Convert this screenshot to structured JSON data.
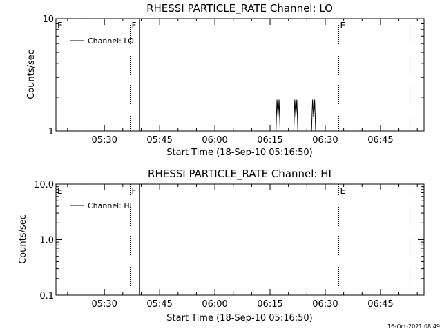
{
  "chart_data": [
    {
      "type": "line",
      "title": "RHESSI PARTICLE_RATE Channel: LO",
      "xlabel": "Start Time (18-Sep-10 05:16:50)",
      "ylabel": "Counts/sec",
      "y_scale": "log",
      "ylim": [
        1,
        10
      ],
      "y_ticks": [
        {
          "value": 1,
          "label": "1"
        },
        {
          "value": 10,
          "label": "10"
        }
      ],
      "xlim": [
        "05:16:50",
        "06:56:50"
      ],
      "x_ticks": [
        "05:30",
        "05:45",
        "06:00",
        "06:15",
        "06:30",
        "06:45"
      ],
      "legend": {
        "placement": "top-left",
        "label": "Channel: LO"
      },
      "flags": [
        {
          "label": "E",
          "time": "05:16:50",
          "style": "dotted"
        },
        {
          "label": "F",
          "time": "05:37:00",
          "style": "dotted"
        },
        {
          "label": "",
          "time": "05:39:30",
          "style": "solid"
        },
        {
          "label": "E",
          "time": "06:33:40",
          "style": "dotted"
        },
        {
          "label": "",
          "time": "06:53:00",
          "style": "dotted"
        }
      ],
      "series": [
        {
          "name": "Channel: LO",
          "points": [
            {
              "x": "06:17:10",
              "y": 1.9
            },
            {
              "x": "06:22:00",
              "y": 1.9
            },
            {
              "x": "06:26:50",
              "y": 1.9
            }
          ]
        }
      ]
    },
    {
      "type": "line",
      "title": "RHESSI PARTICLE_RATE Channel: HI",
      "xlabel": "Start Time (18-Sep-10 05:16:50)",
      "ylabel": "Counts/sec",
      "y_scale": "log",
      "ylim": [
        0.1,
        10
      ],
      "y_ticks": [
        {
          "value": 0.1,
          "label": "0.1"
        },
        {
          "value": 1,
          "label": "1.0"
        },
        {
          "value": 10,
          "label": "10.0"
        }
      ],
      "xlim": [
        "05:16:50",
        "06:56:50"
      ],
      "x_ticks": [
        "05:30",
        "05:45",
        "06:00",
        "06:15",
        "06:30",
        "06:45"
      ],
      "legend": {
        "placement": "top-left",
        "label": "Channel: HI"
      },
      "flags": [
        {
          "label": "E",
          "time": "05:16:50",
          "style": "dotted"
        },
        {
          "label": "F",
          "time": "05:37:00",
          "style": "dotted"
        },
        {
          "label": "",
          "time": "05:39:30",
          "style": "solid"
        },
        {
          "label": "E",
          "time": "06:33:40",
          "style": "dotted"
        },
        {
          "label": "",
          "time": "06:53:00",
          "style": "dotted"
        }
      ],
      "series": [
        {
          "name": "Channel: HI",
          "points": []
        }
      ]
    }
  ],
  "footer": {
    "timestamp": "16-Oct-2021 08:49"
  }
}
